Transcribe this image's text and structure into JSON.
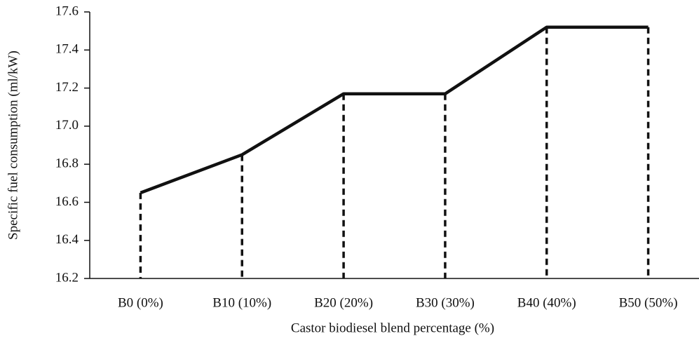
{
  "chart_data": {
    "type": "line",
    "x_label": "Castor biodiesel blend percentage (%)",
    "y_label": "Specific fuel consumption (ml/kW)",
    "categories": [
      "B0 (0%)",
      "B10 (10%)",
      "B20 (20%)",
      "B30 (30%)",
      "B40 (40%)",
      "B50 (50%)"
    ],
    "values": [
      16.65,
      16.85,
      17.17,
      17.17,
      17.52,
      17.52
    ],
    "color": "#111111",
    "ylim": [
      16.2,
      17.6
    ],
    "yticks": [
      16.2,
      16.4,
      16.6,
      16.8,
      {
        "value": 17,
        "label": "17.0"
      },
      17.2,
      17.4,
      17.6
    ]
  }
}
